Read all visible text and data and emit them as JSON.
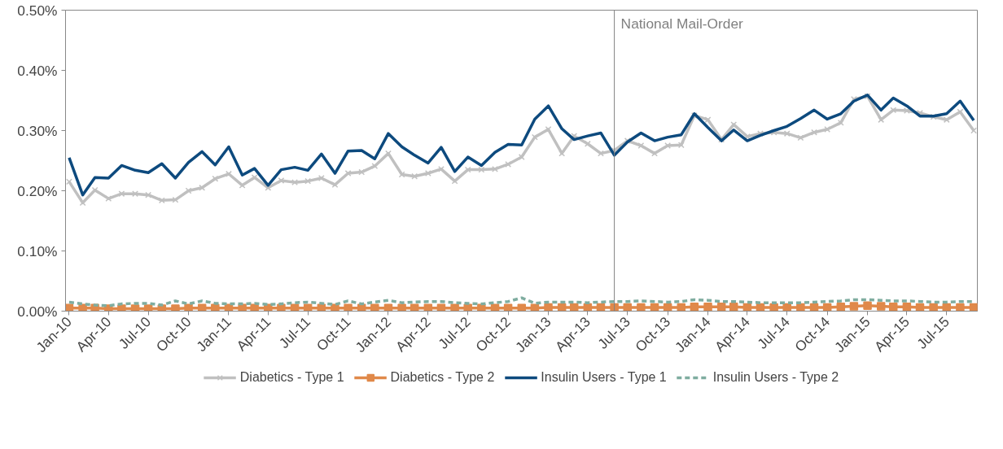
{
  "chart_data": {
    "type": "line",
    "x": [
      "2010-01",
      "2010-02",
      "2010-03",
      "2010-04",
      "2010-05",
      "2010-06",
      "2010-07",
      "2010-08",
      "2010-09",
      "2010-10",
      "2010-11",
      "2010-12",
      "2011-01",
      "2011-02",
      "2011-03",
      "2011-04",
      "2011-05",
      "2011-06",
      "2011-07",
      "2011-08",
      "2011-09",
      "2011-10",
      "2011-11",
      "2011-12",
      "2012-01",
      "2012-02",
      "2012-03",
      "2012-04",
      "2012-05",
      "2012-06",
      "2012-07",
      "2012-08",
      "2012-09",
      "2012-10",
      "2012-11",
      "2012-12",
      "2013-01",
      "2013-02",
      "2013-03",
      "2013-04",
      "2013-05",
      "2013-06",
      "2013-07",
      "2013-08",
      "2013-09",
      "2013-10",
      "2013-11",
      "2013-12",
      "2014-01",
      "2014-02",
      "2014-03",
      "2014-04",
      "2014-05",
      "2014-06",
      "2014-07",
      "2014-08",
      "2014-09",
      "2014-10",
      "2014-11",
      "2014-12",
      "2015-01",
      "2015-02",
      "2015-03",
      "2015-04",
      "2015-05",
      "2015-06",
      "2015-07",
      "2015-08",
      "2015-09"
    ],
    "series": [
      {
        "name": "Diabetics - Type 1",
        "color": "#c0c0c0",
        "marker": "cross",
        "line_style": "solid",
        "values": [
          0.215,
          0.18,
          0.201,
          0.187,
          0.195,
          0.195,
          0.193,
          0.184,
          0.185,
          0.2,
          0.205,
          0.22,
          0.228,
          0.209,
          0.222,
          0.205,
          0.217,
          0.214,
          0.216,
          0.221,
          0.21,
          0.229,
          0.231,
          0.241,
          0.262,
          0.227,
          0.224,
          0.229,
          0.236,
          0.216,
          0.235,
          0.235,
          0.236,
          0.244,
          0.256,
          0.289,
          0.302,
          0.262,
          0.291,
          0.278,
          0.262,
          0.267,
          0.283,
          0.275,
          0.262,
          0.275,
          0.276,
          0.325,
          0.318,
          0.285,
          0.31,
          0.29,
          0.295,
          0.297,
          0.295,
          0.288,
          0.297,
          0.302,
          0.313,
          0.352,
          0.357,
          0.318,
          0.334,
          0.333,
          0.329,
          0.323,
          0.318,
          0.331,
          0.3
        ]
      },
      {
        "name": "Diabetics - Type 2",
        "color": "#e0894a",
        "marker": "square",
        "line_style": "solid",
        "values": [
          0.005,
          0.005,
          0.005,
          0.004,
          0.004,
          0.004,
          0.004,
          0.004,
          0.004,
          0.005,
          0.005,
          0.005,
          0.005,
          0.005,
          0.005,
          0.005,
          0.005,
          0.005,
          0.005,
          0.005,
          0.005,
          0.005,
          0.005,
          0.005,
          0.005,
          0.005,
          0.005,
          0.005,
          0.005,
          0.005,
          0.005,
          0.005,
          0.005,
          0.005,
          0.005,
          0.005,
          0.006,
          0.006,
          0.006,
          0.006,
          0.006,
          0.006,
          0.006,
          0.006,
          0.006,
          0.006,
          0.006,
          0.007,
          0.007,
          0.007,
          0.007,
          0.006,
          0.006,
          0.006,
          0.006,
          0.006,
          0.006,
          0.006,
          0.007,
          0.008,
          0.009,
          0.008,
          0.007,
          0.007,
          0.006,
          0.006,
          0.006,
          0.006,
          0.006
        ]
      },
      {
        "name": "Insulin Users - Type 1",
        "color": "#0d4a7e",
        "marker": "none",
        "line_style": "solid",
        "values": [
          0.255,
          0.193,
          0.222,
          0.221,
          0.242,
          0.234,
          0.23,
          0.245,
          0.221,
          0.247,
          0.265,
          0.243,
          0.273,
          0.226,
          0.237,
          0.209,
          0.235,
          0.239,
          0.234,
          0.261,
          0.229,
          0.266,
          0.267,
          0.253,
          0.295,
          0.273,
          0.259,
          0.246,
          0.272,
          0.232,
          0.256,
          0.242,
          0.264,
          0.277,
          0.276,
          0.319,
          0.341,
          0.303,
          0.285,
          0.291,
          0.296,
          0.259,
          0.281,
          0.296,
          0.283,
          0.289,
          0.293,
          0.328,
          0.305,
          0.283,
          0.301,
          0.283,
          0.292,
          0.3,
          0.307,
          0.32,
          0.334,
          0.319,
          0.328,
          0.349,
          0.359,
          0.334,
          0.354,
          0.341,
          0.324,
          0.324,
          0.328,
          0.349,
          0.317
        ]
      },
      {
        "name": "Insulin Users - Type 2",
        "color": "#7fada0",
        "marker": "none",
        "line_style": "dashed",
        "values": [
          0.015,
          0.012,
          0.01,
          0.009,
          0.012,
          0.013,
          0.013,
          0.01,
          0.017,
          0.012,
          0.017,
          0.013,
          0.012,
          0.012,
          0.013,
          0.011,
          0.012,
          0.014,
          0.015,
          0.013,
          0.011,
          0.017,
          0.012,
          0.015,
          0.018,
          0.014,
          0.015,
          0.016,
          0.016,
          0.014,
          0.013,
          0.012,
          0.014,
          0.016,
          0.022,
          0.013,
          0.015,
          0.015,
          0.015,
          0.014,
          0.015,
          0.016,
          0.016,
          0.017,
          0.016,
          0.015,
          0.016,
          0.019,
          0.018,
          0.016,
          0.016,
          0.015,
          0.014,
          0.014,
          0.014,
          0.014,
          0.015,
          0.016,
          0.017,
          0.019,
          0.019,
          0.018,
          0.017,
          0.017,
          0.016,
          0.015,
          0.015,
          0.016,
          0.016
        ]
      }
    ],
    "xlim": [
      "2010-01",
      "2015-09"
    ],
    "xticks": [
      {
        "value": "2010-01",
        "label": "Jan-10"
      },
      {
        "value": "2010-04",
        "label": "Apr-10"
      },
      {
        "value": "2010-07",
        "label": "Jul-10"
      },
      {
        "value": "2010-10",
        "label": "Oct-10"
      },
      {
        "value": "2011-01",
        "label": "Jan-11"
      },
      {
        "value": "2011-04",
        "label": "Apr-11"
      },
      {
        "value": "2011-07",
        "label": "Jul-11"
      },
      {
        "value": "2011-10",
        "label": "Oct-11"
      },
      {
        "value": "2012-01",
        "label": "Jan-12"
      },
      {
        "value": "2012-04",
        "label": "Apr-12"
      },
      {
        "value": "2012-07",
        "label": "Jul-12"
      },
      {
        "value": "2012-10",
        "label": "Oct-12"
      },
      {
        "value": "2013-01",
        "label": "Jan-13"
      },
      {
        "value": "2013-04",
        "label": "Apr-13"
      },
      {
        "value": "2013-07",
        "label": "Jul-13"
      },
      {
        "value": "2013-10",
        "label": "Oct-13"
      },
      {
        "value": "2014-01",
        "label": "Jan-14"
      },
      {
        "value": "2014-04",
        "label": "Apr-14"
      },
      {
        "value": "2014-07",
        "label": "Jul-14"
      },
      {
        "value": "2014-10",
        "label": "Oct-14"
      },
      {
        "value": "2015-01",
        "label": "Jan-15"
      },
      {
        "value": "2015-04",
        "label": "Apr-15"
      },
      {
        "value": "2015-07",
        "label": "Jul-15"
      }
    ],
    "ylim": [
      0,
      0.5
    ],
    "yticks": [
      {
        "value": 0,
        "label": "0.00%"
      },
      {
        "value": 0.1,
        "label": "0.10%"
      },
      {
        "value": 0.2,
        "label": "0.20%"
      },
      {
        "value": 0.3,
        "label": "0.30%"
      },
      {
        "value": 0.4,
        "label": "0.40%"
      },
      {
        "value": 0.5,
        "label": "0.50%"
      }
    ],
    "ref_lines": [
      {
        "axis": "x",
        "value": "2013-06",
        "label": "National Mail-Order",
        "color": "#808080"
      }
    ],
    "grid": false,
    "legend": "bottom"
  }
}
